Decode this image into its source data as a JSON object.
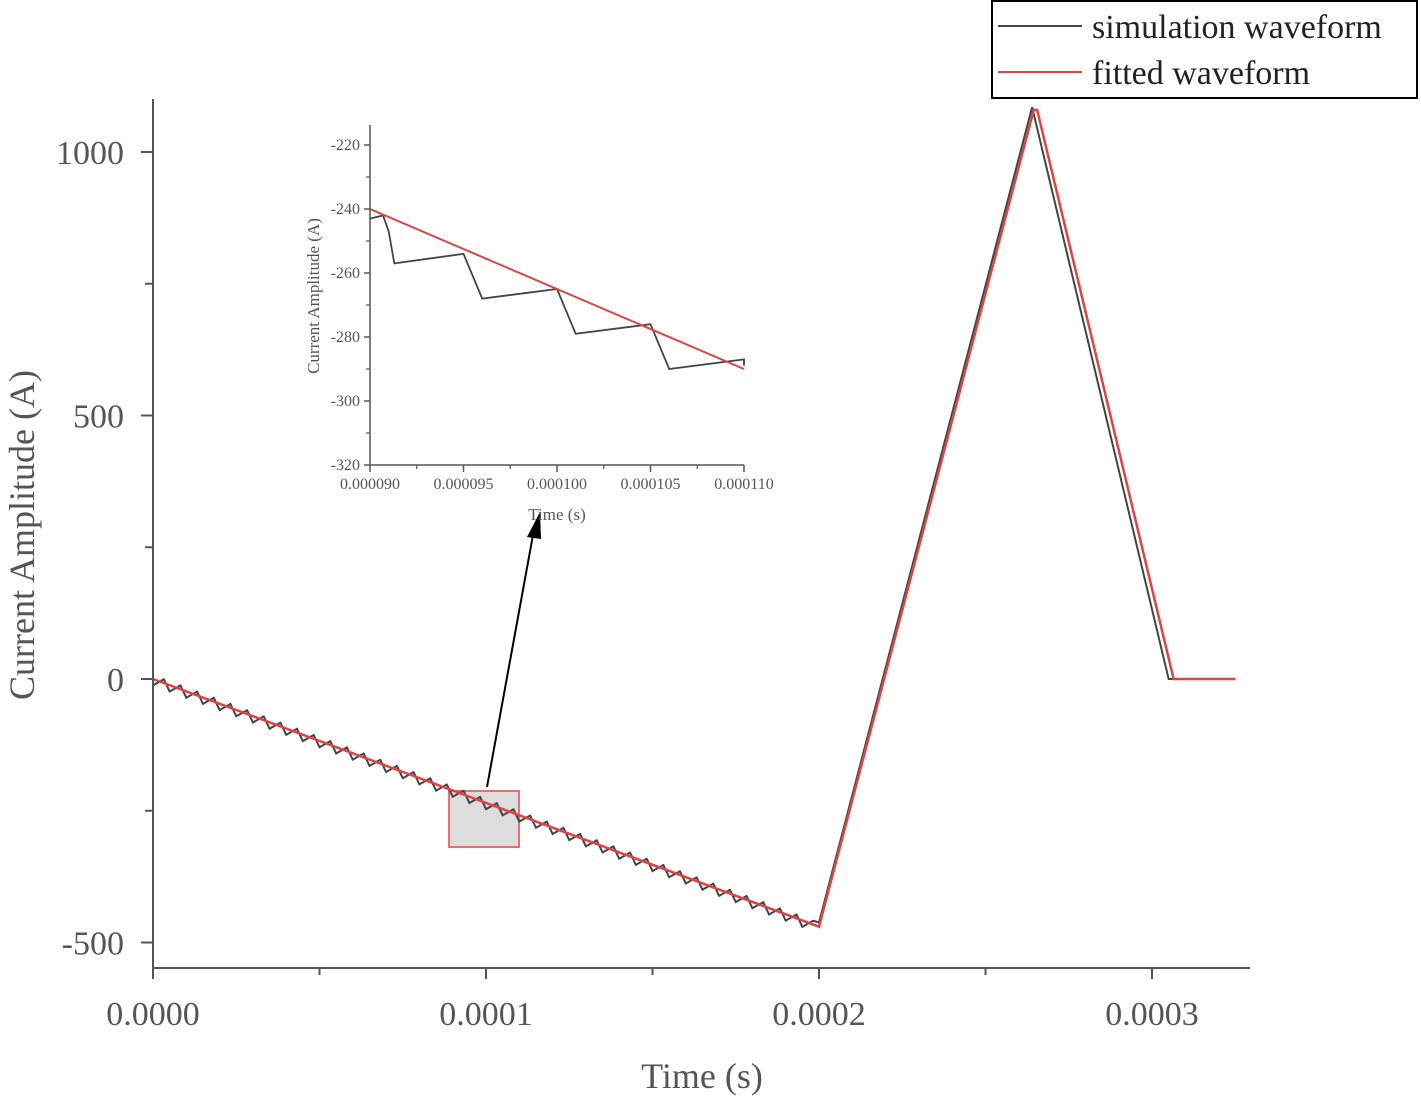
{
  "chart_data": [
    {
      "type": "line",
      "xlabel": "Time (s)",
      "ylabel": "Current Amplitude (A)",
      "xlim": [
        0,
        0.00033
      ],
      "ylim": [
        -550,
        1100
      ],
      "x_ticks": [
        0,
        0.0001,
        0.0002,
        0.0003
      ],
      "x_tick_labels": [
        "0.0000",
        "0.0001",
        "0.0002",
        "0.0003"
      ],
      "y_ticks": [
        -500,
        0,
        500,
        1000
      ],
      "y_tick_labels": [
        "-500",
        "0",
        "500",
        "1000"
      ],
      "legend_position": "top-right",
      "series": [
        {
          "name": "simulation waveform",
          "color": "#444444",
          "sawtooth": {
            "x_start": 0,
            "x_end": 0.0002,
            "period": 5e-06,
            "drop": 12,
            "slope": -2350000
          },
          "points": [
            [
              0.0002,
              -462
            ],
            [
              0.000264,
              1085
            ],
            [
              0.000305,
              0
            ],
            [
              0.000325,
              0
            ]
          ]
        },
        {
          "name": "fitted waveform",
          "color": "#dd4444",
          "points": [
            [
              0,
              0
            ],
            [
              0.0002,
              -470
            ],
            [
              0.0002645,
              1080
            ],
            [
              0.0002655,
              1080
            ],
            [
              0.0003065,
              0
            ],
            [
              0.000325,
              0
            ]
          ]
        }
      ],
      "highlight_box": {
        "x_range": [
          9e-05,
          0.00011
        ],
        "y_range": [
          -320,
          -212
        ],
        "fill": "#dddddd",
        "stroke": "#e87070"
      }
    },
    {
      "type": "line",
      "inset": true,
      "xlabel": "Time (s)",
      "ylabel": "Current Amplitude (A)",
      "xlim": [
        9e-05,
        0.00011
      ],
      "ylim": [
        -320,
        -212
      ],
      "x_ticks": [
        9e-05,
        9.5e-05,
        0.0001,
        0.000105,
        0.00011
      ],
      "x_tick_labels": [
        "0.000090",
        "0.000095",
        "0.000100",
        "0.000105",
        "0.000110"
      ],
      "y_ticks": [
        -220,
        -240,
        -260,
        -280,
        -300,
        -320
      ],
      "y_tick_labels": [
        "-220",
        "-240",
        "-260",
        "-280",
        "-300",
        "-320"
      ],
      "series": [
        {
          "name": "simulation waveform",
          "color": "#444444",
          "points": [
            [
              9e-05,
              -243
            ],
            [
              9.07e-05,
              -242
            ],
            [
              9.1e-05,
              -247
            ],
            [
              9.13e-05,
              -257
            ],
            [
              9.5e-05,
              -254
            ],
            [
              9.6e-05,
              -268
            ],
            [
              0.0001,
              -265
            ],
            [
              0.000101,
              -279
            ],
            [
              0.000105,
              -276
            ],
            [
              0.000106,
              -290
            ],
            [
              0.00011,
              -287
            ],
            [
              0.00011,
              -289
            ]
          ]
        },
        {
          "name": "fitted waveform",
          "color": "#dd4444",
          "points": [
            [
              9e-05,
              -240
            ],
            [
              0.00011,
              -290
            ]
          ]
        }
      ]
    }
  ]
}
